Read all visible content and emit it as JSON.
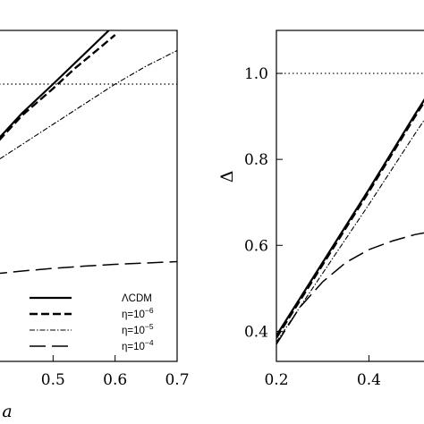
{
  "chart_data": [
    {
      "type": "line",
      "xlabel": "a",
      "ylabel": "",
      "xlim": [
        0.4,
        0.7
      ],
      "ylim": [
        0.38,
        1.12
      ],
      "x_ticks": [
        "0.5",
        "0.6",
        "0.7"
      ],
      "y_ticks": [],
      "reference_line": {
        "y": 1.0,
        "style": "dotted"
      },
      "legend": {
        "position": "bottom-right"
      },
      "series": [
        {
          "name": "ΛCDM",
          "label_html": "ΛCDM",
          "sup": "",
          "style": "solid",
          "x": [
            0.4,
            0.45,
            0.5,
            0.53,
            0.56,
            0.59
          ],
          "y": [
            0.86,
            0.935,
            1.0,
            1.04,
            1.08,
            1.12
          ]
        },
        {
          "name": "η=10−6",
          "label_html": "η=10",
          "sup": "−6",
          "style": "short-dash",
          "x": [
            0.4,
            0.45,
            0.5,
            0.535,
            0.57,
            0.6
          ],
          "y": [
            0.855,
            0.93,
            0.99,
            1.035,
            1.075,
            1.11
          ]
        },
        {
          "name": "η=10−5",
          "label_html": "η=10",
          "sup": "−5",
          "style": "dash-dot",
          "x": [
            0.4,
            0.45,
            0.5,
            0.55,
            0.6,
            0.65,
            0.7
          ],
          "y": [
            0.82,
            0.865,
            0.91,
            0.955,
            1.0,
            1.04,
            1.075
          ]
        },
        {
          "name": "η=10−4",
          "label_html": "η=10",
          "sup": "−4",
          "style": "long-dash",
          "x": [
            0.4,
            0.45,
            0.5,
            0.55,
            0.6,
            0.65,
            0.7
          ],
          "y": [
            0.575,
            0.582,
            0.588,
            0.593,
            0.597,
            0.6,
            0.603
          ]
        }
      ]
    },
    {
      "type": "line",
      "xlabel": "",
      "ylabel": "Δ",
      "xlim": [
        0.2,
        0.55
      ],
      "ylim": [
        0.33,
        1.1
      ],
      "x_ticks": [
        "0.2",
        "0.4"
      ],
      "y_ticks": [
        "0.4",
        "0.6",
        "0.8",
        "1.0"
      ],
      "reference_line": {
        "y": 1.0,
        "style": "dotted"
      },
      "series": [
        {
          "name": "ΛCDM",
          "style": "solid",
          "x": [
            0.2,
            0.3,
            0.4,
            0.5,
            0.55
          ],
          "y": [
            0.39,
            0.56,
            0.73,
            0.905,
            0.99
          ]
        },
        {
          "name": "η=10−6",
          "style": "short-dash",
          "x": [
            0.2,
            0.3,
            0.4,
            0.5,
            0.55
          ],
          "y": [
            0.385,
            0.555,
            0.725,
            0.9,
            0.985
          ]
        },
        {
          "name": "η=10−5",
          "style": "dash-dot",
          "x": [
            0.2,
            0.3,
            0.4,
            0.5,
            0.55
          ],
          "y": [
            0.375,
            0.535,
            0.695,
            0.86,
            0.94
          ]
        },
        {
          "name": "η=10−4",
          "style": "long-dash",
          "x": [
            0.2,
            0.25,
            0.3,
            0.35,
            0.4,
            0.45,
            0.5,
            0.55
          ],
          "y": [
            0.37,
            0.455,
            0.515,
            0.56,
            0.59,
            0.61,
            0.625,
            0.635
          ]
        }
      ]
    }
  ]
}
